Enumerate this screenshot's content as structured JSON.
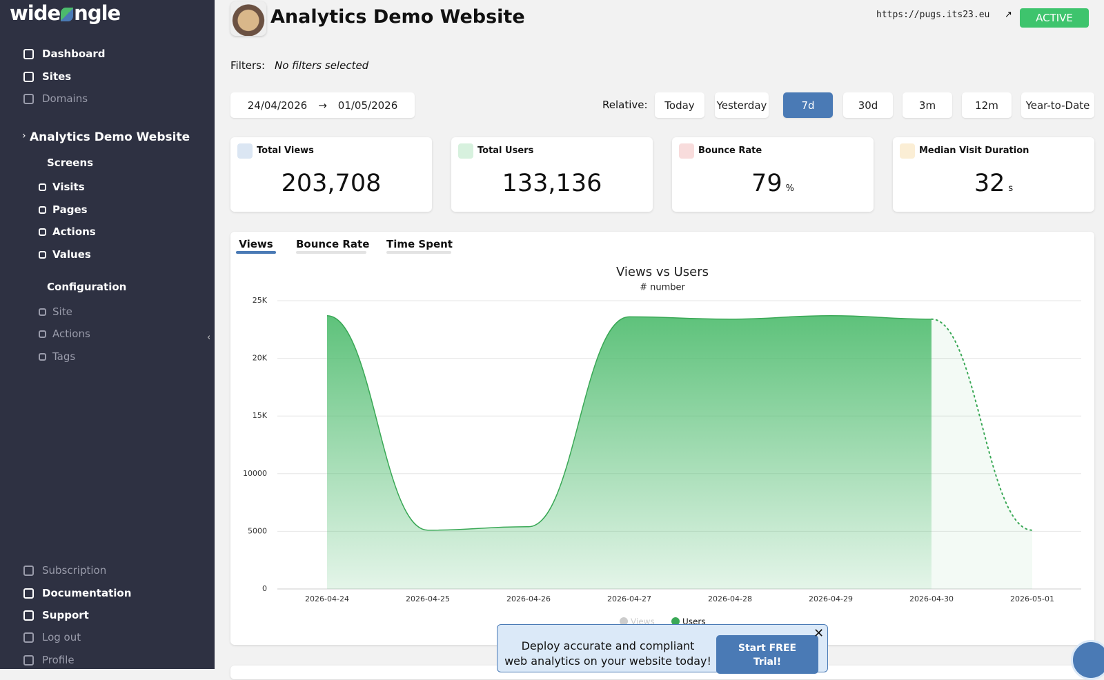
{
  "logo": {
    "left": "wide",
    "right": "ngle"
  },
  "nav": {
    "main": [
      "Dashboard",
      "Sites",
      "Domains"
    ],
    "site": "Analytics Demo Website",
    "screens": {
      "title": "Screens",
      "items": [
        "Visits",
        "Pages",
        "Actions",
        "Values"
      ]
    },
    "configuration": {
      "title": "Configuration",
      "items": [
        "Site",
        "Actions",
        "Tags"
      ]
    },
    "bottom": [
      "Subscription",
      "Documentation",
      "Support",
      "Log out",
      "Profile"
    ]
  },
  "header": {
    "title": "Analytics Demo Website",
    "url": "https://pugs.its23.eu",
    "status": "ACTIVE"
  },
  "filters": {
    "label": "Filters:",
    "value": "No filters selected"
  },
  "date_range": {
    "from": "24/04/2026",
    "to": "01/05/2026"
  },
  "relative": {
    "label": "Relative:",
    "options": [
      "Today",
      "Yesterday",
      "7d",
      "30d",
      "3m",
      "12m",
      "Year-to-Date"
    ],
    "selected": 2
  },
  "stats": [
    {
      "label": "Total Views",
      "value": "203,708"
    },
    {
      "label": "Total Users",
      "value": "133,136"
    },
    {
      "label": "Bounce Rate",
      "value": "79",
      "unit": "%"
    },
    {
      "label": "Median Visit Duration",
      "value": "32",
      "unit": "s"
    }
  ],
  "tabs": {
    "items": [
      "Views",
      "Bounce Rate",
      "Time Spent"
    ],
    "selected": 0
  },
  "chart_data": {
    "type": "area",
    "title": "Views vs Users",
    "subtitle": "# number",
    "x": [
      "2026-04-24",
      "2026-04-25",
      "2026-04-26",
      "2026-04-27",
      "2026-04-28",
      "2026-04-29",
      "2026-04-30",
      "2026-05-01"
    ],
    "series": [
      {
        "name": "Views",
        "color": "#cccccc",
        "visible": false,
        "values": [
          null,
          null,
          null,
          null,
          null,
          null,
          null,
          null
        ]
      },
      {
        "name": "Users",
        "color": "#3aa856",
        "visible": true,
        "values": [
          23700,
          5100,
          5400,
          23600,
          23400,
          23700,
          23400,
          5100
        ]
      }
    ],
    "incomplete_last_point": true,
    "ylim": [
      0,
      25000
    ],
    "yticks": [
      0,
      5000,
      10000,
      {
        "value": 15000,
        "label": "15K"
      },
      {
        "value": 20000,
        "label": "20K"
      },
      {
        "value": 25000,
        "label": "25K"
      }
    ],
    "grid": true,
    "legend": "bottom"
  },
  "banner": {
    "lines": [
      "Deploy accurate and compliant",
      "web analytics on your website today!"
    ],
    "button": [
      "Start FREE",
      "Trial!"
    ]
  }
}
